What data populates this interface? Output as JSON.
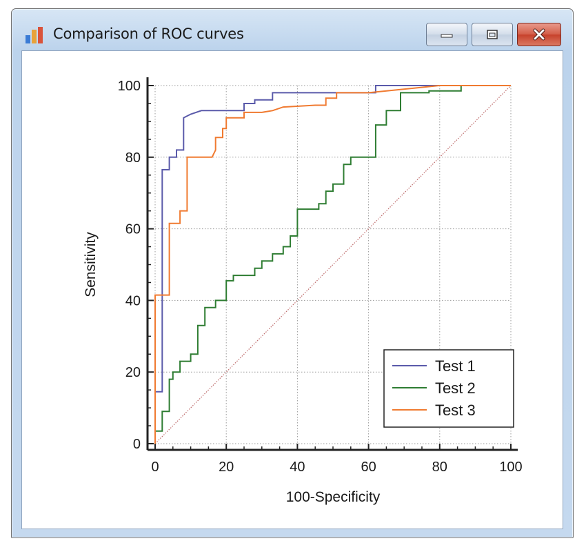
{
  "window": {
    "title": "Comparison of ROC curves",
    "icon": "bar-chart-icon",
    "controls": [
      "minimize",
      "maximize",
      "close"
    ]
  },
  "colors": {
    "test1": "#5a5aaa",
    "test2": "#2e7d32",
    "test3": "#f07a30",
    "reference": "#c07070",
    "grid": "#9a9a9a"
  },
  "chart_data": {
    "type": "line",
    "title": "",
    "xlabel": "100-Specificity",
    "ylabel": "Sensitivity",
    "xlim": [
      0,
      100
    ],
    "ylim": [
      0,
      100
    ],
    "xticks": [
      0,
      20,
      40,
      60,
      80,
      100
    ],
    "yticks": [
      0,
      20,
      40,
      60,
      80,
      100
    ],
    "grid": true,
    "legend_position": "bottom-right",
    "reference_line": {
      "x": [
        0,
        100
      ],
      "y": [
        0,
        100
      ]
    },
    "series": [
      {
        "name": "Test 1",
        "color": "#5a5aaa",
        "x": [
          0,
          0,
          2,
          2,
          4,
          4,
          6,
          6,
          8,
          8,
          10,
          13,
          18,
          25,
          25,
          28,
          28,
          33,
          33,
          40,
          50,
          60,
          62,
          62,
          80,
          100
        ],
        "y": [
          0,
          14.5,
          14.5,
          76.5,
          76.5,
          80,
          80,
          82,
          82,
          91,
          92,
          93,
          93,
          93,
          95,
          95,
          96,
          96,
          98,
          98,
          98,
          98,
          98,
          100,
          100,
          100
        ]
      },
      {
        "name": "Test 2",
        "color": "#2e7d32",
        "x": [
          0,
          0,
          2,
          2,
          4,
          4,
          5,
          5,
          7,
          7,
          10,
          10,
          12,
          12,
          14,
          14,
          17,
          17,
          20,
          20,
          22,
          22,
          28,
          28,
          30,
          30,
          33,
          33,
          36,
          36,
          38,
          38,
          40,
          40,
          46,
          46,
          48,
          48,
          50,
          50,
          53,
          53,
          55,
          55,
          62,
          62,
          65,
          65,
          69,
          69,
          77,
          77,
          86,
          86,
          100
        ],
        "y": [
          0,
          3.5,
          3.5,
          9,
          9,
          18,
          18,
          20,
          20,
          23,
          23,
          25,
          25,
          33,
          33,
          38,
          38,
          40,
          40,
          45.5,
          45.5,
          47,
          47,
          49,
          49,
          51,
          51,
          53,
          53,
          55,
          55,
          58,
          58,
          65.5,
          65.5,
          67,
          67,
          70.5,
          70.5,
          72.5,
          72.5,
          78,
          78,
          80,
          80,
          89,
          89,
          93,
          93,
          98,
          98,
          98.5,
          98.5,
          100,
          100
        ]
      },
      {
        "name": "Test 3",
        "color": "#f07a30",
        "x": [
          0,
          0,
          2,
          2,
          4,
          4,
          7,
          7,
          9,
          9,
          12,
          16,
          17,
          17,
          19,
          19,
          20,
          20,
          25,
          25,
          30,
          33,
          36,
          45,
          48,
          48,
          51,
          51,
          60,
          80,
          100
        ],
        "y": [
          0,
          41.5,
          41.5,
          41.5,
          41.5,
          61.5,
          61.5,
          65,
          65,
          80,
          80,
          80,
          82,
          85.5,
          85.5,
          88,
          88,
          91,
          91,
          92.5,
          92.5,
          93,
          94,
          94.5,
          94.5,
          96.5,
          96.5,
          98,
          98,
          100,
          100
        ]
      }
    ]
  }
}
